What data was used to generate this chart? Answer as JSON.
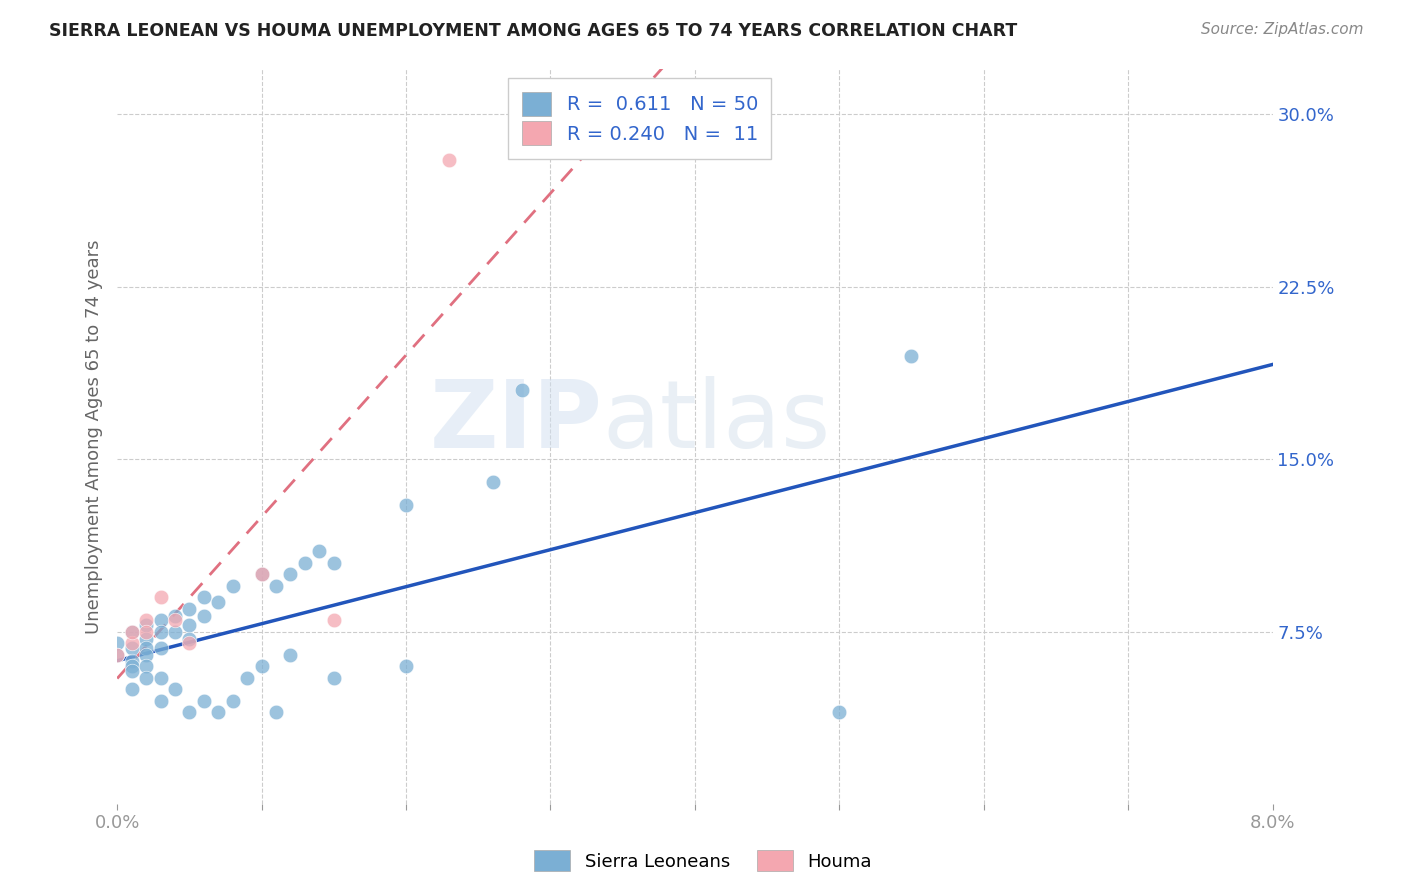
{
  "title": "SIERRA LEONEAN VS HOUMA UNEMPLOYMENT AMONG AGES 65 TO 74 YEARS CORRELATION CHART",
  "source": "Source: ZipAtlas.com",
  "ylabel": "Unemployment Among Ages 65 to 74 years",
  "xlim": [
    0.0,
    0.08
  ],
  "ylim": [
    0.0,
    0.32
  ],
  "sierra_color": "#7bafd4",
  "houma_color": "#f4a7b0",
  "sierra_line_color": "#2255bb",
  "houma_line_color": "#e07080",
  "sierra_R": "0.611",
  "sierra_N": "50",
  "houma_R": "0.240",
  "houma_N": "11",
  "legend_label_1": "Sierra Leoneans",
  "legend_label_2": "Houma",
  "watermark_zip": "ZIP",
  "watermark_atlas": "atlas",
  "background_color": "#ffffff",
  "grid_color": "#cccccc",
  "sierra_x": [
    0.0,
    0.0,
    0.001,
    0.001,
    0.001,
    0.001,
    0.001,
    0.001,
    0.002,
    0.002,
    0.002,
    0.002,
    0.002,
    0.002,
    0.003,
    0.003,
    0.003,
    0.003,
    0.003,
    0.004,
    0.004,
    0.004,
    0.005,
    0.005,
    0.005,
    0.005,
    0.006,
    0.006,
    0.006,
    0.007,
    0.007,
    0.008,
    0.008,
    0.009,
    0.01,
    0.01,
    0.011,
    0.011,
    0.012,
    0.012,
    0.013,
    0.014,
    0.015,
    0.015,
    0.02,
    0.02,
    0.026,
    0.028,
    0.05,
    0.055
  ],
  "sierra_y": [
    0.07,
    0.065,
    0.075,
    0.068,
    0.062,
    0.06,
    0.058,
    0.05,
    0.078,
    0.072,
    0.068,
    0.065,
    0.06,
    0.055,
    0.08,
    0.075,
    0.068,
    0.055,
    0.045,
    0.082,
    0.075,
    0.05,
    0.085,
    0.078,
    0.072,
    0.04,
    0.09,
    0.082,
    0.045,
    0.088,
    0.04,
    0.095,
    0.045,
    0.055,
    0.1,
    0.06,
    0.095,
    0.04,
    0.1,
    0.065,
    0.105,
    0.11,
    0.105,
    0.055,
    0.13,
    0.06,
    0.14,
    0.18,
    0.04,
    0.195
  ],
  "houma_x": [
    0.0,
    0.001,
    0.001,
    0.002,
    0.002,
    0.003,
    0.004,
    0.005,
    0.01,
    0.015,
    0.023
  ],
  "houma_y": [
    0.065,
    0.07,
    0.075,
    0.08,
    0.075,
    0.09,
    0.08,
    0.07,
    0.1,
    0.08,
    0.28
  ]
}
